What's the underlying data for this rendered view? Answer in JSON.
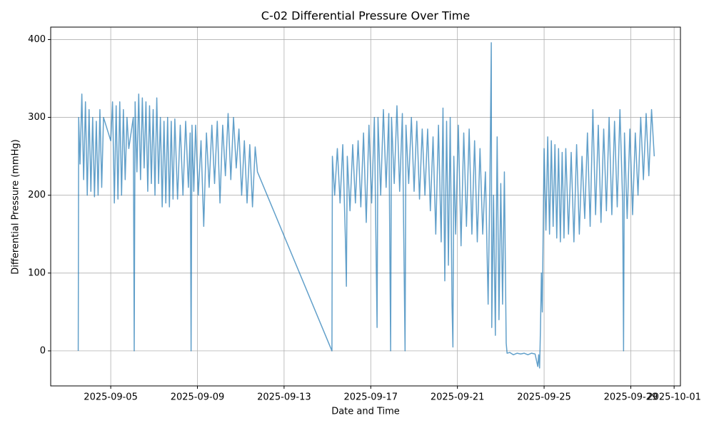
{
  "chart_data": {
    "type": "line",
    "title": "C-02 Differential Pressure Over Time",
    "x_label": "Date and Time",
    "y_label": "Differential Pressure (mmHg)",
    "color": "#1f77b4",
    "grid": true,
    "xlim": [
      "2025-09-02 05:30",
      "2025-10-01 07:00"
    ],
    "xticks": [
      "2025-09-05",
      "2025-09-09",
      "2025-09-13",
      "2025-09-17",
      "2025-09-21",
      "2025-09-25",
      "2025-09-29",
      "2025-10-01"
    ],
    "ylim": [
      -45,
      416
    ],
    "yticks": [
      0,
      100,
      200,
      300,
      400
    ],
    "x": [
      "2025-09-03 12:00",
      "2025-09-03 12:30",
      "2025-09-03 14:00",
      "2025-09-03 16:00",
      "2025-09-03 18:00",
      "2025-09-03 20:00",
      "2025-09-03 22:00",
      "2025-09-04 00:00",
      "2025-09-04 02:00",
      "2025-09-04 04:00",
      "2025-09-04 06:00",
      "2025-09-04 08:00",
      "2025-09-04 10:00",
      "2025-09-04 12:00",
      "2025-09-04 14:00",
      "2025-09-04 16:00",
      "2025-09-05 00:00",
      "2025-09-05 02:00",
      "2025-09-05 04:00",
      "2025-09-05 06:00",
      "2025-09-05 08:00",
      "2025-09-05 10:00",
      "2025-09-05 12:00",
      "2025-09-05 14:00",
      "2025-09-05 16:00",
      "2025-09-05 18:00",
      "2025-09-05 20:00",
      "2025-09-06 01:00",
      "2025-09-06 02:00",
      "2025-09-06 03:00",
      "2025-09-06 05:00",
      "2025-09-06 07:00",
      "2025-09-06 09:00",
      "2025-09-06 11:00",
      "2025-09-06 13:00",
      "2025-09-06 15:00",
      "2025-09-06 17:00",
      "2025-09-06 19:00",
      "2025-09-06 21:00",
      "2025-09-06 23:00",
      "2025-09-07 01:00",
      "2025-09-07 03:00",
      "2025-09-07 05:00",
      "2025-09-07 07:00",
      "2025-09-07 09:00",
      "2025-09-07 11:00",
      "2025-09-07 13:00",
      "2025-09-07 15:00",
      "2025-09-07 17:00",
      "2025-09-07 19:00",
      "2025-09-07 21:00",
      "2025-09-07 23:00",
      "2025-09-08 02:00",
      "2025-09-08 05:00",
      "2025-09-08 08:00",
      "2025-09-08 11:00",
      "2025-09-08 14:00",
      "2025-09-08 16:00",
      "2025-09-08 17:00",
      "2025-09-08 18:00",
      "2025-09-08 20:00",
      "2025-09-08 22:00",
      "2025-09-09 01:00",
      "2025-09-09 04:00",
      "2025-09-09 07:00",
      "2025-09-09 10:00",
      "2025-09-09 13:00",
      "2025-09-09 16:00",
      "2025-09-09 19:00",
      "2025-09-09 22:00",
      "2025-09-10 01:00",
      "2025-09-10 04:00",
      "2025-09-10 07:00",
      "2025-09-10 10:00",
      "2025-09-10 13:00",
      "2025-09-10 16:00",
      "2025-09-10 19:00",
      "2025-09-10 22:00",
      "2025-09-11 01:00",
      "2025-09-11 04:00",
      "2025-09-11 07:00",
      "2025-09-11 10:00",
      "2025-09-11 13:00",
      "2025-09-11 16:00",
      "2025-09-11 18:30",
      "2025-09-15 05:00",
      "2025-09-15 05:30",
      "2025-09-15 08:00",
      "2025-09-15 11:00",
      "2025-09-15 14:00",
      "2025-09-15 17:00",
      "2025-09-15 20:00",
      "2025-09-15 21:00",
      "2025-09-15 22:00",
      "2025-09-16 01:00",
      "2025-09-16 04:00",
      "2025-09-16 07:00",
      "2025-09-16 10:00",
      "2025-09-16 13:00",
      "2025-09-16 16:00",
      "2025-09-16 19:00",
      "2025-09-16 22:00",
      "2025-09-17 01:00",
      "2025-09-17 04:00",
      "2025-09-17 07:00",
      "2025-09-17 08:00",
      "2025-09-17 11:00",
      "2025-09-17 14:00",
      "2025-09-17 17:00",
      "2025-09-17 20:00",
      "2025-09-17 22:00",
      "2025-09-17 23:00",
      "2025-09-18 02:00",
      "2025-09-18 05:00",
      "2025-09-18 08:00",
      "2025-09-18 11:00",
      "2025-09-18 14:00",
      "2025-09-18 15:00",
      "2025-09-18 18:00",
      "2025-09-18 21:00",
      "2025-09-19 00:00",
      "2025-09-19 03:00",
      "2025-09-19 06:00",
      "2025-09-19 09:00",
      "2025-09-19 12:00",
      "2025-09-19 15:00",
      "2025-09-19 18:00",
      "2025-09-19 21:00",
      "2025-09-20 00:00",
      "2025-09-20 03:00",
      "2025-09-20 06:00",
      "2025-09-20 08:00",
      "2025-09-20 10:00",
      "2025-09-20 12:00",
      "2025-09-20 14:00",
      "2025-09-20 16:00",
      "2025-09-20 18:00",
      "2025-09-20 19:00",
      "2025-09-20 20:00",
      "2025-09-20 22:00",
      "2025-09-21 01:00",
      "2025-09-21 04:00",
      "2025-09-21 07:00",
      "2025-09-21 10:00",
      "2025-09-21 13:00",
      "2025-09-21 16:00",
      "2025-09-21 19:00",
      "2025-09-21 22:00",
      "2025-09-22 01:00",
      "2025-09-22 04:00",
      "2025-09-22 07:00",
      "2025-09-22 10:00",
      "2025-09-22 12:00",
      "2025-09-22 13:30",
      "2025-09-22 14:00",
      "2025-09-22 16:00",
      "2025-09-22 18:00",
      "2025-09-22 20:00",
      "2025-09-22 22:00",
      "2025-09-23 00:00",
      "2025-09-23 02:00",
      "2025-09-23 04:00",
      "2025-09-23 06:00",
      "2025-09-23 07:00",
      "2025-09-23 10:00",
      "2025-09-23 14:00",
      "2025-09-23 18:00",
      "2025-09-23 22:00",
      "2025-09-24 02:00",
      "2025-09-24 06:00",
      "2025-09-24 10:00",
      "2025-09-24 14:00",
      "2025-09-24 17:00",
      "2025-09-24 18:00",
      "2025-09-24 19:00",
      "2025-09-24 20:00",
      "2025-09-24 21:00",
      "2025-09-24 22:00",
      "2025-09-24 23:00",
      "2025-09-25 00:00",
      "2025-09-25 02:00",
      "2025-09-25 04:00",
      "2025-09-25 06:00",
      "2025-09-25 08:00",
      "2025-09-25 10:00",
      "2025-09-25 12:00",
      "2025-09-25 14:00",
      "2025-09-25 16:00",
      "2025-09-25 18:00",
      "2025-09-25 20:00",
      "2025-09-25 22:00",
      "2025-09-26 00:00",
      "2025-09-26 03:00",
      "2025-09-26 06:00",
      "2025-09-26 09:00",
      "2025-09-26 12:00",
      "2025-09-26 15:00",
      "2025-09-26 18:00",
      "2025-09-26 21:00",
      "2025-09-27 00:00",
      "2025-09-27 03:00",
      "2025-09-27 06:00",
      "2025-09-27 09:00",
      "2025-09-27 12:00",
      "2025-09-27 15:00",
      "2025-09-27 18:00",
      "2025-09-27 21:00",
      "2025-09-28 00:00",
      "2025-09-28 03:00",
      "2025-09-28 06:00",
      "2025-09-28 09:00",
      "2025-09-28 12:00",
      "2025-09-28 15:00",
      "2025-09-28 16:00",
      "2025-09-28 17:00",
      "2025-09-28 20:00",
      "2025-09-28 23:00",
      "2025-09-29 02:00",
      "2025-09-29 05:00",
      "2025-09-29 08:00",
      "2025-09-29 11:00",
      "2025-09-29 14:00",
      "2025-09-29 17:00",
      "2025-09-29 20:00",
      "2025-09-29 23:00",
      "2025-09-30 02:00"
    ],
    "values": [
      0,
      300,
      240,
      330,
      220,
      320,
      200,
      310,
      205,
      300,
      198,
      295,
      200,
      310,
      210,
      300,
      270,
      320,
      190,
      315,
      195,
      320,
      200,
      310,
      220,
      300,
      260,
      300,
      0,
      320,
      230,
      330,
      220,
      325,
      235,
      320,
      205,
      315,
      215,
      310,
      200,
      325,
      215,
      300,
      185,
      295,
      190,
      300,
      185,
      295,
      195,
      298,
      195,
      290,
      200,
      295,
      210,
      280,
      0,
      290,
      205,
      290,
      200,
      270,
      160,
      280,
      210,
      290,
      215,
      295,
      190,
      290,
      225,
      305,
      220,
      300,
      235,
      285,
      200,
      270,
      190,
      265,
      185,
      262,
      230,
      0,
      250,
      200,
      260,
      190,
      265,
      140,
      83,
      250,
      180,
      265,
      190,
      270,
      185,
      280,
      165,
      290,
      190,
      300,
      30,
      300,
      200,
      310,
      210,
      305,
      0,
      300,
      215,
      315,
      205,
      305,
      0,
      290,
      215,
      300,
      205,
      295,
      195,
      285,
      200,
      285,
      180,
      275,
      150,
      290,
      140,
      312,
      90,
      295,
      110,
      300,
      60,
      5,
      250,
      150,
      290,
      135,
      280,
      160,
      285,
      150,
      270,
      140,
      260,
      150,
      230,
      60,
      220,
      396,
      30,
      200,
      20,
      275,
      40,
      215,
      60,
      230,
      10,
      -3,
      -2,
      -5,
      -3,
      -4,
      -3,
      -5,
      -3,
      -4,
      -20,
      -5,
      -22,
      30,
      100,
      50,
      160,
      260,
      155,
      275,
      150,
      270,
      160,
      265,
      145,
      260,
      140,
      255,
      145,
      260,
      150,
      255,
      140,
      265,
      150,
      250,
      170,
      280,
      160,
      310,
      175,
      290,
      165,
      285,
      180,
      300,
      175,
      295,
      185,
      310,
      190,
      0,
      280,
      170,
      285,
      175,
      280,
      200,
      300,
      220,
      305,
      225,
      310,
      250
    ]
  }
}
